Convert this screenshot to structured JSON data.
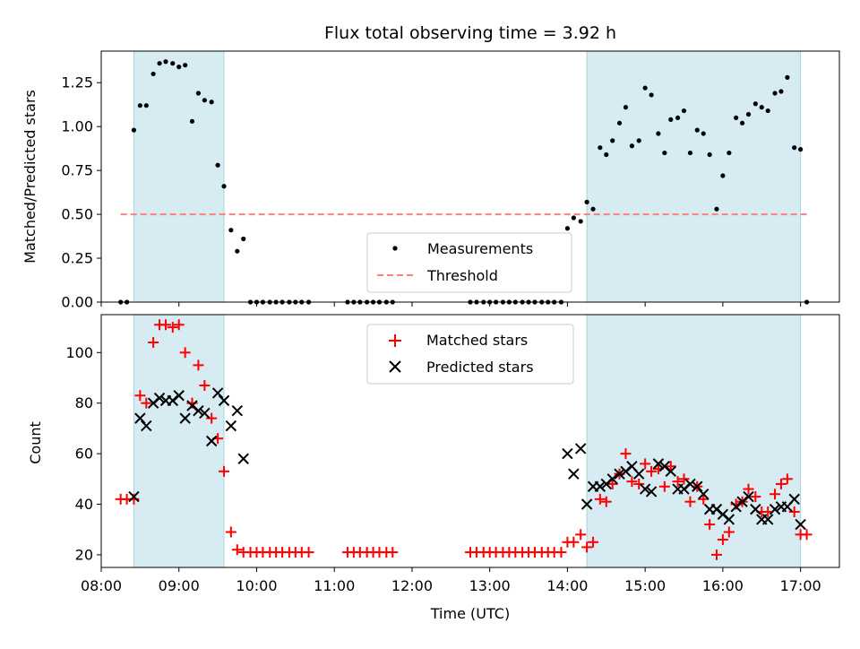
{
  "chart_data": [
    {
      "type": "scatter",
      "title": "Flux total observing time = 3.92 h",
      "xlabel": "",
      "ylabel": "Matched/Predicted stars",
      "xlim": [
        8.0,
        17.5
      ],
      "ylim": [
        0,
        1.43
      ],
      "y_ticks": [
        "0.00",
        "0.25",
        "0.50",
        "0.75",
        "1.00",
        "1.25"
      ],
      "shaded_intervals": [
        [
          8.42,
          9.58
        ],
        [
          14.25,
          17.0
        ]
      ],
      "shade_color": "#add8e6",
      "legend_position": "lower-center",
      "series": [
        {
          "name": "Measurements",
          "marker": "dot",
          "color": "#000000",
          "points": [
            [
              8.25,
              0.0
            ],
            [
              8.33,
              0.0
            ],
            [
              8.42,
              0.98
            ],
            [
              8.5,
              1.12
            ],
            [
              8.58,
              1.12
            ],
            [
              8.67,
              1.3
            ],
            [
              8.75,
              1.36
            ],
            [
              8.83,
              1.37
            ],
            [
              8.92,
              1.36
            ],
            [
              9.0,
              1.34
            ],
            [
              9.08,
              1.35
            ],
            [
              9.17,
              1.03
            ],
            [
              9.25,
              1.19
            ],
            [
              9.33,
              1.15
            ],
            [
              9.42,
              1.14
            ],
            [
              9.5,
              0.78
            ],
            [
              9.58,
              0.66
            ],
            [
              9.67,
              0.41
            ],
            [
              9.75,
              0.29
            ],
            [
              9.83,
              0.36
            ],
            [
              9.92,
              0.0
            ],
            [
              10.0,
              0.0
            ],
            [
              10.08,
              0.0
            ],
            [
              10.17,
              0.0
            ],
            [
              10.25,
              0.0
            ],
            [
              10.33,
              0.0
            ],
            [
              10.42,
              0.0
            ],
            [
              10.5,
              0.0
            ],
            [
              10.58,
              0.0
            ],
            [
              10.67,
              0.0
            ],
            [
              11.17,
              0.0
            ],
            [
              11.25,
              0.0
            ],
            [
              11.33,
              0.0
            ],
            [
              11.42,
              0.0
            ],
            [
              11.5,
              0.0
            ],
            [
              11.58,
              0.0
            ],
            [
              11.67,
              0.0
            ],
            [
              11.75,
              0.0
            ],
            [
              12.75,
              0.0
            ],
            [
              12.83,
              0.0
            ],
            [
              12.92,
              0.0
            ],
            [
              13.0,
              0.0
            ],
            [
              13.08,
              0.0
            ],
            [
              13.17,
              0.0
            ],
            [
              13.25,
              0.0
            ],
            [
              13.33,
              0.0
            ],
            [
              13.42,
              0.0
            ],
            [
              13.5,
              0.0
            ],
            [
              13.58,
              0.0
            ],
            [
              13.67,
              0.0
            ],
            [
              13.75,
              0.0
            ],
            [
              13.83,
              0.0
            ],
            [
              13.92,
              0.0
            ],
            [
              14.0,
              0.42
            ],
            [
              14.08,
              0.48
            ],
            [
              14.17,
              0.46
            ],
            [
              14.25,
              0.57
            ],
            [
              14.33,
              0.53
            ],
            [
              14.42,
              0.88
            ],
            [
              14.5,
              0.84
            ],
            [
              14.58,
              0.92
            ],
            [
              14.67,
              1.02
            ],
            [
              14.75,
              1.11
            ],
            [
              14.83,
              0.89
            ],
            [
              14.92,
              0.92
            ],
            [
              15.0,
              1.22
            ],
            [
              15.08,
              1.18
            ],
            [
              15.17,
              0.96
            ],
            [
              15.25,
              0.85
            ],
            [
              15.33,
              1.04
            ],
            [
              15.42,
              1.05
            ],
            [
              15.5,
              1.09
            ],
            [
              15.58,
              0.85
            ],
            [
              15.67,
              0.98
            ],
            [
              15.75,
              0.96
            ],
            [
              15.83,
              0.84
            ],
            [
              15.92,
              0.53
            ],
            [
              16.0,
              0.72
            ],
            [
              16.08,
              0.85
            ],
            [
              16.17,
              1.05
            ],
            [
              16.25,
              1.02
            ],
            [
              16.33,
              1.07
            ],
            [
              16.42,
              1.13
            ],
            [
              16.5,
              1.11
            ],
            [
              16.58,
              1.09
            ],
            [
              16.67,
              1.19
            ],
            [
              16.75,
              1.2
            ],
            [
              16.83,
              1.28
            ],
            [
              16.92,
              0.88
            ],
            [
              17.0,
              0.87
            ],
            [
              17.08,
              0.0
            ]
          ]
        },
        {
          "name": "Threshold",
          "marker": "dashed-line",
          "color": "#ff7f7f",
          "points": [
            [
              8.25,
              0.5
            ],
            [
              17.08,
              0.5
            ]
          ]
        }
      ]
    },
    {
      "type": "scatter",
      "title": "",
      "xlabel": "Time (UTC)",
      "ylabel": "Count",
      "xlim": [
        8.0,
        17.5
      ],
      "ylim": [
        15,
        115
      ],
      "y_ticks": [
        "20",
        "40",
        "60",
        "80",
        "100"
      ],
      "x_ticks": [
        "08:00",
        "09:00",
        "10:00",
        "11:00",
        "12:00",
        "13:00",
        "14:00",
        "15:00",
        "16:00",
        "17:00"
      ],
      "shaded_intervals": [
        [
          8.42,
          9.58
        ],
        [
          14.25,
          17.0
        ]
      ],
      "shade_color": "#add8e6",
      "legend_position": "upper-center",
      "series": [
        {
          "name": "Matched stars",
          "marker": "plus",
          "color": "#ff0000",
          "points": [
            [
              8.25,
              42
            ],
            [
              8.33,
              42
            ],
            [
              8.42,
              42
            ],
            [
              8.5,
              83
            ],
            [
              8.58,
              80
            ],
            [
              8.67,
              104
            ],
            [
              8.75,
              111
            ],
            [
              8.83,
              111
            ],
            [
              8.92,
              110
            ],
            [
              9.0,
              111
            ],
            [
              9.08,
              100
            ],
            [
              9.17,
              80
            ],
            [
              9.25,
              95
            ],
            [
              9.33,
              87
            ],
            [
              9.42,
              74
            ],
            [
              9.5,
              66
            ],
            [
              9.58,
              53
            ],
            [
              9.67,
              29
            ],
            [
              9.75,
              22
            ],
            [
              9.83,
              21
            ],
            [
              9.92,
              21
            ],
            [
              10.0,
              21
            ],
            [
              10.08,
              21
            ],
            [
              10.17,
              21
            ],
            [
              10.25,
              21
            ],
            [
              10.33,
              21
            ],
            [
              10.42,
              21
            ],
            [
              10.5,
              21
            ],
            [
              10.58,
              21
            ],
            [
              10.67,
              21
            ],
            [
              11.17,
              21
            ],
            [
              11.25,
              21
            ],
            [
              11.33,
              21
            ],
            [
              11.42,
              21
            ],
            [
              11.5,
              21
            ],
            [
              11.58,
              21
            ],
            [
              11.67,
              21
            ],
            [
              11.75,
              21
            ],
            [
              12.75,
              21
            ],
            [
              12.83,
              21
            ],
            [
              12.92,
              21
            ],
            [
              13.0,
              21
            ],
            [
              13.08,
              21
            ],
            [
              13.17,
              21
            ],
            [
              13.25,
              21
            ],
            [
              13.33,
              21
            ],
            [
              13.42,
              21
            ],
            [
              13.5,
              21
            ],
            [
              13.58,
              21
            ],
            [
              13.67,
              21
            ],
            [
              13.75,
              21
            ],
            [
              13.83,
              21
            ],
            [
              13.92,
              21
            ],
            [
              14.0,
              25
            ],
            [
              14.08,
              25
            ],
            [
              14.17,
              28
            ],
            [
              14.25,
              23
            ],
            [
              14.33,
              25
            ],
            [
              14.42,
              42
            ],
            [
              14.5,
              41
            ],
            [
              14.58,
              48
            ],
            [
              14.67,
              52
            ],
            [
              14.75,
              60
            ],
            [
              14.83,
              49
            ],
            [
              14.92,
              48
            ],
            [
              15.0,
              56
            ],
            [
              15.08,
              53
            ],
            [
              15.17,
              54
            ],
            [
              15.25,
              47
            ],
            [
              15.33,
              55
            ],
            [
              15.42,
              49
            ],
            [
              15.5,
              50
            ],
            [
              15.58,
              41
            ],
            [
              15.67,
              47
            ],
            [
              15.75,
              42
            ],
            [
              15.83,
              32
            ],
            [
              15.92,
              20
            ],
            [
              16.0,
              26
            ],
            [
              16.08,
              29
            ],
            [
              16.17,
              40
            ],
            [
              16.25,
              41
            ],
            [
              16.33,
              46
            ],
            [
              16.42,
              43
            ],
            [
              16.5,
              37
            ],
            [
              16.58,
              37
            ],
            [
              16.67,
              44
            ],
            [
              16.75,
              48
            ],
            [
              16.83,
              50
            ],
            [
              16.92,
              37
            ],
            [
              17.0,
              28
            ],
            [
              17.08,
              28
            ]
          ]
        },
        {
          "name": "Predicted stars",
          "marker": "x",
          "color": "#000000",
          "points": [
            [
              8.42,
              43
            ],
            [
              8.5,
              74
            ],
            [
              8.58,
              71
            ],
            [
              8.67,
              80
            ],
            [
              8.75,
              82
            ],
            [
              8.83,
              81
            ],
            [
              8.92,
              81
            ],
            [
              9.0,
              83
            ],
            [
              9.08,
              74
            ],
            [
              9.17,
              79
            ],
            [
              9.25,
              77
            ],
            [
              9.33,
              76
            ],
            [
              9.42,
              65
            ],
            [
              9.5,
              84
            ],
            [
              9.58,
              81
            ],
            [
              9.67,
              71
            ],
            [
              9.75,
              77
            ],
            [
              9.83,
              58
            ],
            [
              14.0,
              60
            ],
            [
              14.08,
              52
            ],
            [
              14.17,
              62
            ],
            [
              14.25,
              40
            ],
            [
              14.33,
              47
            ],
            [
              14.42,
              47
            ],
            [
              14.5,
              48
            ],
            [
              14.58,
              50
            ],
            [
              14.67,
              52
            ],
            [
              14.75,
              53
            ],
            [
              14.83,
              55
            ],
            [
              14.92,
              52
            ],
            [
              15.0,
              46
            ],
            [
              15.08,
              45
            ],
            [
              15.17,
              56
            ],
            [
              15.25,
              55
            ],
            [
              15.33,
              53
            ],
            [
              15.42,
              46
            ],
            [
              15.5,
              46
            ],
            [
              15.58,
              48
            ],
            [
              15.67,
              47
            ],
            [
              15.75,
              44
            ],
            [
              15.83,
              38
            ],
            [
              15.92,
              38
            ],
            [
              16.0,
              36
            ],
            [
              16.08,
              34
            ],
            [
              16.17,
              39
            ],
            [
              16.25,
              41
            ],
            [
              16.33,
              43
            ],
            [
              16.42,
              38
            ],
            [
              16.5,
              34
            ],
            [
              16.58,
              34
            ],
            [
              16.67,
              38
            ],
            [
              16.75,
              39
            ],
            [
              16.83,
              39
            ],
            [
              16.92,
              42
            ],
            [
              17.0,
              32
            ]
          ]
        }
      ]
    }
  ]
}
